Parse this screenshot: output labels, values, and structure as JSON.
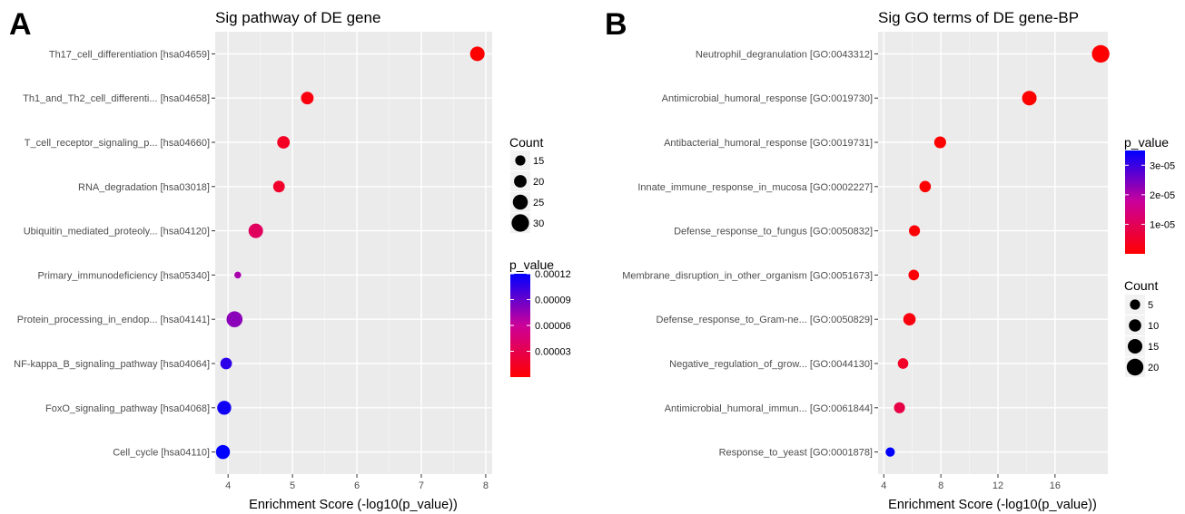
{
  "panels": [
    {
      "letter": "A",
      "title": "Sig pathway of DE gene",
      "xlabel": "Enrichment Score (-log10(p_value))",
      "legend_count_title": "Count",
      "legend_p_title": "p_value"
    },
    {
      "letter": "B",
      "title": "Sig GO terms of DE gene-BP",
      "xlabel": "Enrichment Score (-log10(p_value))",
      "legend_count_title": "Count",
      "legend_p_title": "p_value"
    }
  ],
  "chart_data": [
    {
      "type": "scatter",
      "title": "Sig pathway of DE gene",
      "xlabel": "Enrichment Score (-log10(p_value))",
      "ylabel": "",
      "xlim": [
        3.8,
        8.1
      ],
      "xticks": [
        4,
        5,
        6,
        7,
        8
      ],
      "xtick_labels": [
        "4",
        "5",
        "6",
        "7",
        "8"
      ],
      "grid": true,
      "legend_position": "right",
      "categories": [
        "Th17_cell_differentiation [hsa04659]",
        "Th1_and_Th2_cell_differenti... [hsa04658]",
        "T_cell_receptor_signaling_p... [hsa04660]",
        "RNA_degradation [hsa03018]",
        "Ubiquitin_mediated_proteoly... [hsa04120]",
        "Primary_immunodeficiency [hsa05340]",
        "Protein_processing_in_endop... [hsa04141]",
        "NF-kappa_B_signaling_pathway [hsa04064]",
        "FoxO_signaling_pathway [hsa04068]",
        "Cell_cycle [hsa04110]"
      ],
      "points": [
        {
          "x": 7.87,
          "count": 24,
          "p_value": 1.35e-08
        },
        {
          "x": 5.23,
          "count": 20,
          "p_value": 5.9e-06
        },
        {
          "x": 4.86,
          "count": 20,
          "p_value": 1.38e-05
        },
        {
          "x": 4.79,
          "count": 18,
          "p_value": 1.62e-05
        },
        {
          "x": 4.43,
          "count": 24,
          "p_value": 3.7e-05
        },
        {
          "x": 4.15,
          "count": 8,
          "p_value": 7.1e-05
        },
        {
          "x": 4.1,
          "count": 27,
          "p_value": 7.9e-05
        },
        {
          "x": 3.97,
          "count": 18,
          "p_value": 0.000107
        },
        {
          "x": 3.94,
          "count": 23,
          "p_value": 0.000115
        },
        {
          "x": 3.92,
          "count": 23,
          "p_value": 0.00012
        }
      ],
      "size_legend": {
        "title": "Count",
        "values": [
          15,
          20,
          25,
          30
        ],
        "labels": [
          "15",
          "20",
          "25",
          "30"
        ]
      },
      "color_legend": {
        "title": "p_value",
        "labels": [
          "0.00012",
          "0.00009",
          "0.00006",
          "0.00003"
        ],
        "values": [
          0.00012,
          9e-05,
          6e-05,
          3e-05
        ],
        "range": [
          1.35e-08,
          0.00012
        ],
        "low_color": "#ff0000",
        "high_color": "#0000ff"
      }
    },
    {
      "type": "scatter",
      "title": "Sig GO terms of DE gene-BP",
      "xlabel": "Enrichment Score (-log10(p_value))",
      "ylabel": "",
      "xlim": [
        3.6,
        19.7
      ],
      "xticks": [
        4,
        8,
        12,
        16
      ],
      "xtick_labels": [
        "4",
        "8",
        "12",
        "16"
      ],
      "grid": true,
      "legend_position": "right",
      "categories": [
        "Neutrophil_degranulation [GO:0043312]",
        "Antimicrobial_humoral_response [GO:0019730]",
        "Antibacterial_humoral_response [GO:0019731]",
        "Innate_immune_response_in_mucosa [GO:0002227]",
        "Defense_response_to_fungus [GO:0050832]",
        "Membrane_disruption_in_other_organism [GO:0051673]",
        "Defense_response_to_Gram-ne... [GO:0050829]",
        "Negative_regulation_of_grow... [GO:0044130]",
        "Antimicrobial_humoral_immun... [GO:0061844]",
        "Response_to_yeast [GO:0001878]"
      ],
      "points": [
        {
          "x": 19.2,
          "count": 22,
          "p_value": 1e-19
        },
        {
          "x": 14.2,
          "count": 15,
          "p_value": 1e-14
        },
        {
          "x": 7.95,
          "count": 9,
          "p_value": 1.12e-08
        },
        {
          "x": 6.9,
          "count": 8,
          "p_value": 1.26e-07
        },
        {
          "x": 6.15,
          "count": 7,
          "p_value": 7.1e-07
        },
        {
          "x": 6.1,
          "count": 6,
          "p_value": 7.9e-07
        },
        {
          "x": 5.8,
          "count": 10,
          "p_value": 1.6e-06
        },
        {
          "x": 5.35,
          "count": 6,
          "p_value": 4.5e-06
        },
        {
          "x": 5.1,
          "count": 7,
          "p_value": 7.9e-06
        },
        {
          "x": 4.45,
          "count": 3,
          "p_value": 3.5e-05
        }
      ],
      "size_legend": {
        "title": "Count",
        "values": [
          5,
          10,
          15,
          20
        ],
        "labels": [
          "5",
          "10",
          "15",
          "20"
        ]
      },
      "color_legend": {
        "title": "p_value",
        "labels": [
          "3e-05",
          "2e-05",
          "1e-05"
        ],
        "values": [
          3e-05,
          2e-05,
          1e-05
        ],
        "range": [
          1e-19,
          3.5e-05
        ],
        "low_color": "#ff0000",
        "high_color": "#0000ff"
      }
    }
  ]
}
